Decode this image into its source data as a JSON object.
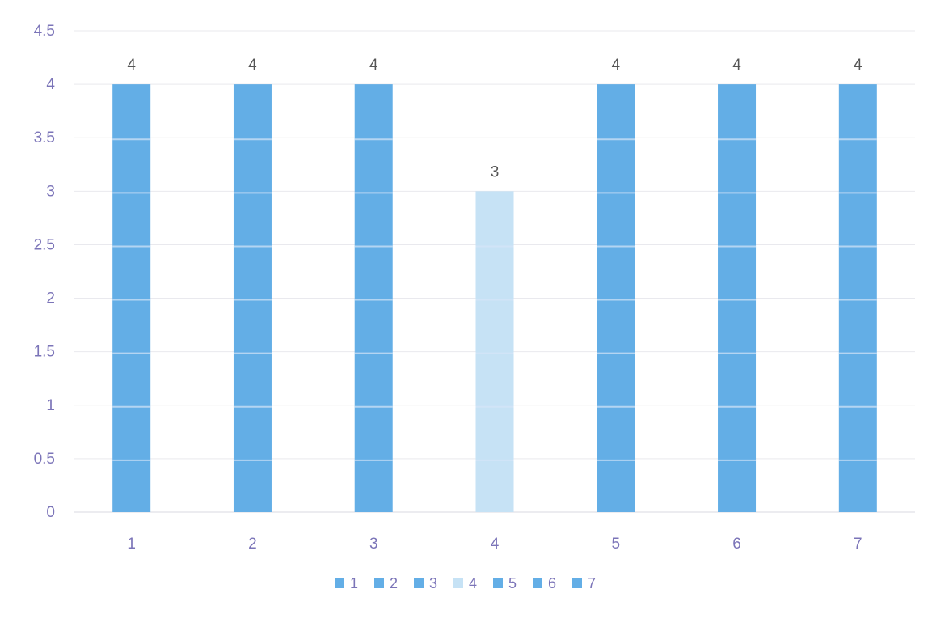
{
  "chart_data": {
    "type": "bar",
    "categories": [
      "1",
      "2",
      "3",
      "4",
      "5",
      "6",
      "7"
    ],
    "values": [
      4,
      4,
      4,
      3,
      4,
      4,
      4
    ],
    "data_labels": [
      "4",
      "4",
      "4",
      "3",
      "4",
      "4",
      "4"
    ],
    "yticks": [
      "0",
      "0.5",
      "1",
      "1.5",
      "2",
      "2.5",
      "3",
      "3.5",
      "4",
      "4.5"
    ],
    "ylim": [
      0,
      4.5
    ],
    "grid": true,
    "legend": {
      "placement": "bottom",
      "entries": [
        "1",
        "2",
        "3",
        "4",
        "5",
        "6",
        "7"
      ]
    },
    "colors": {
      "bar": "#63aee6",
      "bar_highlight": "#c6e2f5",
      "gridline": "#e9e9ee",
      "bar_stripe": "#d7e6f8"
    }
  }
}
